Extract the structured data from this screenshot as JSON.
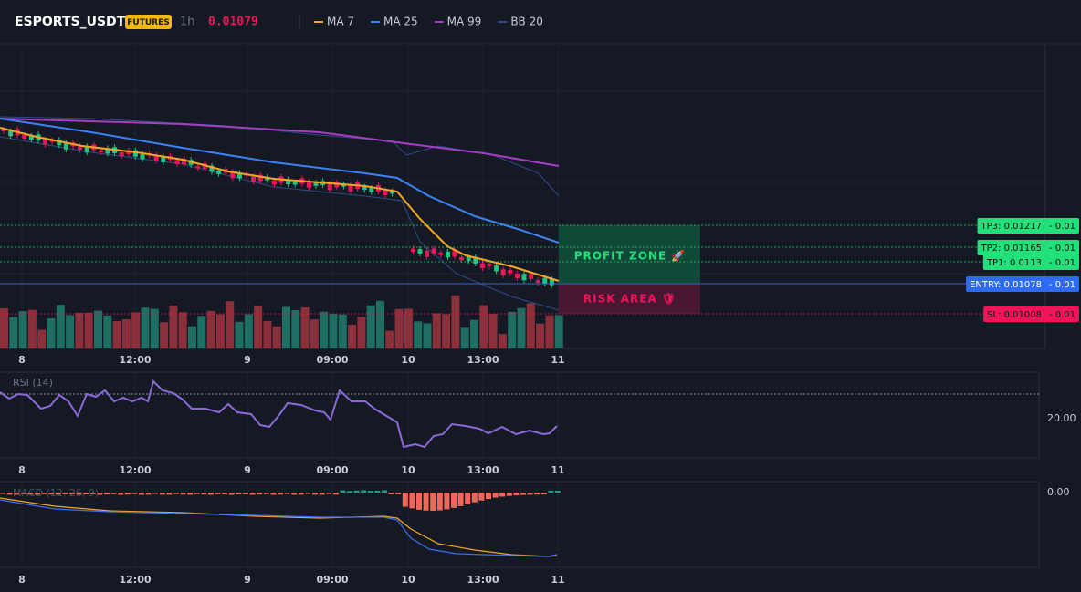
{
  "header": {
    "symbol": "ESPORTS_USDT",
    "badge": "FUTURES",
    "interval": "1h",
    "price": "0.01079",
    "indicators": [
      {
        "name": "MA 7",
        "color": "#f5a623"
      },
      {
        "name": "MA 25",
        "color": "#3b82f6"
      },
      {
        "name": "MA 99",
        "color": "#a43fc4"
      },
      {
        "name": "BB 20",
        "color": "#2f4a8a"
      }
    ]
  },
  "levels": [
    {
      "label": "TP3: 0.01217",
      "suffix": "- 0.01",
      "color": "#22e07a"
    },
    {
      "label": "TP2: 0.01165",
      "suffix": "- 0.01",
      "color": "#22e07a"
    },
    {
      "label": "TP1: 0.0113",
      "suffix": "- 0.01",
      "color": "#22e07a"
    },
    {
      "label": "ENTRY: 0.01078",
      "suffix": "- 0.01",
      "color": "#2f6bf0"
    },
    {
      "label": "SL: 0.01008",
      "suffix": "- 0.01",
      "color": "#f0145a"
    }
  ],
  "zones": {
    "profit": "PROFIT ZONE 🚀",
    "risk": "RISK AREA 🛡"
  },
  "time_axis": [
    "8",
    "12:00",
    "9",
    "09:00",
    "10",
    "13:00",
    "11"
  ],
  "rsi": {
    "label": "RSI (14)",
    "tick": "20.00"
  },
  "macd": {
    "label": "MACD (12, 26, 9)",
    "tick": "0.00"
  }
}
